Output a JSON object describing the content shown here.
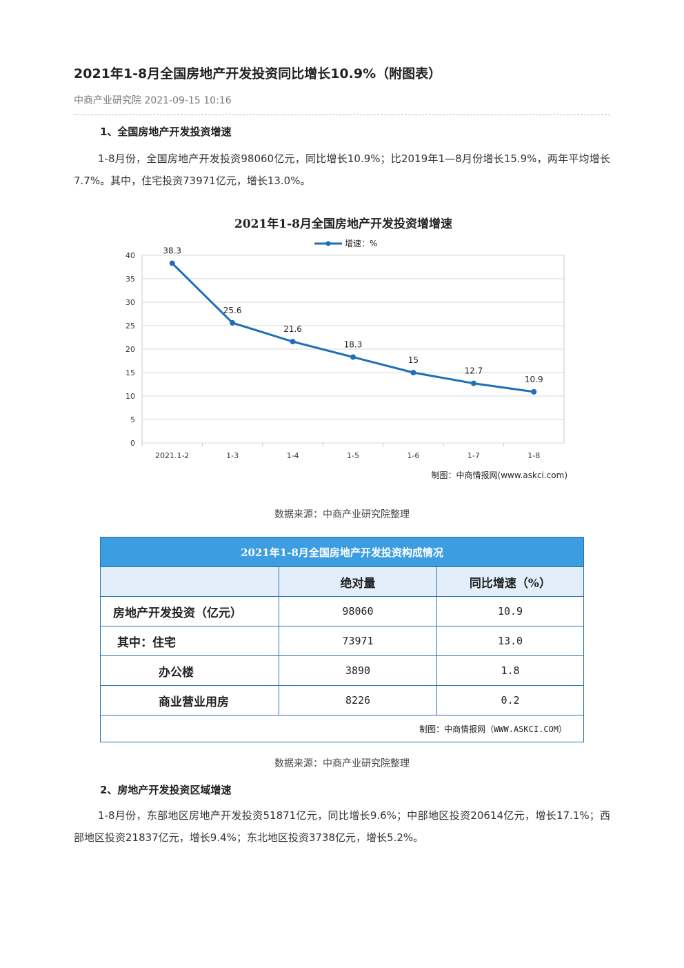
{
  "article": {
    "title": "2021年1-8月全国房地产开发投资同比增长10.9%（附图表）",
    "meta": "中商产业研究院 2021-09-15 10:16"
  },
  "section1": {
    "heading": "1、全国房地产开发投资增速",
    "paragraph": "1-8月份，全国房地产开发投资98060亿元，同比增长10.9%；比2019年1—8月份增长15.9%，两年平均增长7.7%。其中，住宅投资73971亿元，增长13.0%。",
    "chart_caption": "数据来源：中商产业研究院整理",
    "table_caption": "数据来源：中商产业研究院整理"
  },
  "chart_data": {
    "type": "line",
    "title": "2021年1-8月全国房地产开发投资增增速",
    "categories": [
      "2021.1-2",
      "1-3",
      "1-4",
      "1-5",
      "1-6",
      "1-7",
      "1-8"
    ],
    "series": [
      {
        "name": "增速：%",
        "values": [
          38.3,
          25.6,
          21.6,
          18.3,
          15,
          12.7,
          10.9
        ]
      }
    ],
    "ylim": [
      0,
      40
    ],
    "yticks": [
      0,
      5,
      10,
      15,
      20,
      25,
      30,
      35,
      40
    ],
    "grid": true,
    "legend": "top-center",
    "credit": "制图：中商情报网(www.askci.com)",
    "line_color": "#1f6fb8"
  },
  "table": {
    "title": "2021年1-8月全国房地产开发投资构成情况",
    "col_headers": [
      "",
      "绝对量",
      "同比增速（%）"
    ],
    "rows": [
      {
        "label": "房地产开发投资（亿元）",
        "value": "98060",
        "growth": "10.9"
      },
      {
        "label": "其中：住宅",
        "value": "73971",
        "growth": "13.0"
      },
      {
        "label": "办公楼",
        "value": "3890",
        "growth": "1.8"
      },
      {
        "label": "商业营业用房",
        "value": "8226",
        "growth": "0.2"
      }
    ],
    "credit": "制图：中商情报网（WWW.ASKCI.COM）",
    "header_color": "#3c9de0"
  },
  "section2": {
    "heading": "2、房地产开发投资区域增速",
    "paragraph": "1-8月份，东部地区房地产开发投资51871亿元，同比增长9.6%；中部地区投资20614亿元，增长17.1%；西部地区投资21837亿元，增长9.4%；东北地区投资3738亿元，增长5.2%。"
  }
}
